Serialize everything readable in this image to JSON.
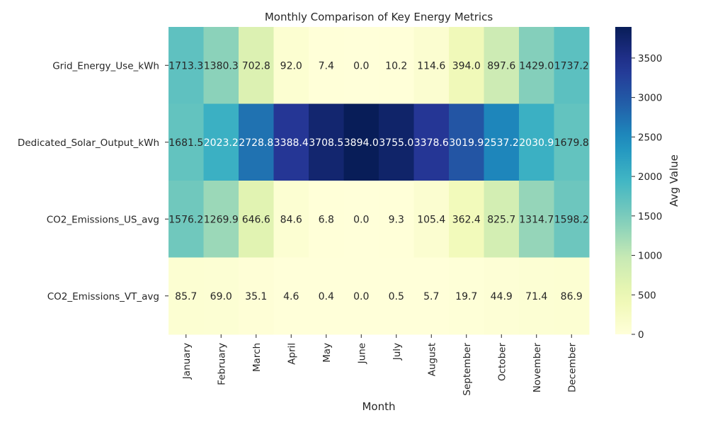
{
  "chart_data": {
    "type": "heatmap",
    "title": "Monthly Comparison of Key Energy Metrics",
    "xlabel": "Month",
    "ylabel": "",
    "colorbar_label": "Avg Value",
    "colormap": "YlGnBu",
    "color_range": [
      0,
      3894.0
    ],
    "colorbar_ticks": [
      "0",
      "500",
      "1000",
      "1500",
      "2000",
      "2500",
      "3000",
      "3500"
    ],
    "colorbar_tick_values": [
      0,
      500,
      1000,
      1500,
      2000,
      2500,
      3000,
      3500
    ],
    "x": [
      "January",
      "February",
      "March",
      "April",
      "May",
      "June",
      "July",
      "August",
      "September",
      "October",
      "November",
      "December"
    ],
    "y": [
      "Grid_Energy_Use_kWh",
      "Dedicated_Solar_Output_kWh",
      "CO2_Emissions_US_avg",
      "CO2_Emissions_VT_avg"
    ],
    "values": [
      [
        1713.3,
        1380.3,
        702.8,
        92.0,
        7.4,
        0.0,
        10.2,
        114.6,
        394.0,
        897.6,
        1429.0,
        1737.2
      ],
      [
        1681.5,
        2023.2,
        2728.8,
        3388.4,
        3708.5,
        3894.0,
        3755.0,
        3378.6,
        3019.9,
        2537.2,
        2030.9,
        1679.8
      ],
      [
        1576.2,
        1269.9,
        646.6,
        84.6,
        6.8,
        0.0,
        9.3,
        105.4,
        362.4,
        825.7,
        1314.7,
        1598.2
      ],
      [
        85.7,
        69.0,
        35.1,
        4.6,
        0.4,
        0.0,
        0.5,
        5.7,
        19.7,
        44.9,
        71.4,
        86.9
      ]
    ]
  }
}
